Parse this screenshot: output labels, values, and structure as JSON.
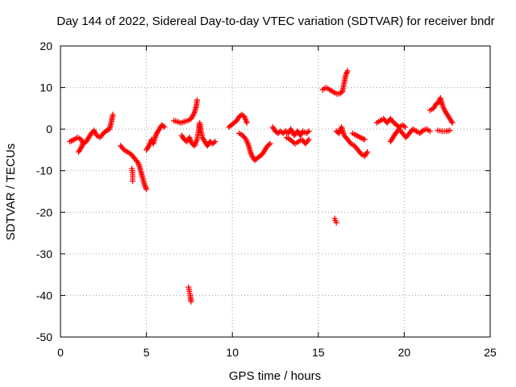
{
  "chart_data": {
    "type": "scatter",
    "title": "Day 144 of 2022, Sidereal Day-to-day VTEC variation (SDTVAR) for receiver bndr",
    "xlabel": "GPS time / hours",
    "ylabel": "SDTVAR / TECUs",
    "xlim": [
      0,
      25
    ],
    "ylim": [
      -50,
      20
    ],
    "xticks": [
      0,
      5,
      10,
      15,
      20,
      25
    ],
    "yticks": [
      -50,
      -40,
      -30,
      -20,
      -10,
      0,
      10,
      20
    ],
    "grid": true,
    "marker": "+",
    "marker_color": "#ff0000",
    "series": [
      {
        "name": "SDTVAR",
        "segments": [
          [
            [
              0.55,
              -3.0
            ],
            [
              0.8,
              -2.5
            ],
            [
              1.0,
              -2.0
            ],
            [
              1.2,
              -2.5
            ],
            [
              1.35,
              -3.5
            ],
            [
              1.5,
              -3.0
            ],
            [
              1.65,
              -2.0
            ],
            [
              1.8,
              -1.0
            ],
            [
              1.95,
              -0.3
            ],
            [
              2.1,
              -1.5
            ],
            [
              2.3,
              -2.0
            ],
            [
              2.5,
              -1.0
            ],
            [
              2.7,
              -0.3
            ],
            [
              2.85,
              0.0
            ],
            [
              2.95,
              1.5
            ],
            [
              3.05,
              3.5
            ]
          ],
          [
            [
              1.05,
              -5.5
            ],
            [
              1.2,
              -4.5
            ],
            [
              1.3,
              -3.5
            ]
          ],
          [
            [
              3.5,
              -4.0
            ],
            [
              3.7,
              -5.0
            ],
            [
              3.9,
              -5.5
            ],
            [
              4.1,
              -6.0
            ],
            [
              4.3,
              -7.0
            ],
            [
              4.5,
              -8.0
            ],
            [
              4.6,
              -9.0
            ],
            [
              4.7,
              -10.5
            ],
            [
              4.8,
              -12.0
            ],
            [
              4.9,
              -13.5
            ],
            [
              5.0,
              -14.5
            ]
          ],
          [
            [
              4.15,
              -9.5
            ],
            [
              4.2,
              -10.5
            ],
            [
              4.2,
              -11.5
            ],
            [
              4.2,
              -12.5
            ]
          ],
          [
            [
              5.0,
              -5.0
            ],
            [
              5.15,
              -4.0
            ],
            [
              5.3,
              -2.5
            ],
            [
              5.4,
              -3.5
            ],
            [
              5.5,
              -2.0
            ],
            [
              5.6,
              -1.0
            ],
            [
              5.75,
              0.0
            ],
            [
              5.9,
              1.0
            ],
            [
              6.05,
              0.5
            ]
          ],
          [
            [
              6.6,
              2.0
            ],
            [
              6.8,
              1.8
            ],
            [
              7.0,
              1.5
            ],
            [
              7.2,
              1.8
            ],
            [
              7.4,
              2.0
            ],
            [
              7.6,
              2.5
            ],
            [
              7.8,
              4.0
            ],
            [
              7.9,
              5.5
            ],
            [
              7.95,
              7.0
            ]
          ],
          [
            [
              7.05,
              -1.5
            ],
            [
              7.2,
              -2.5
            ],
            [
              7.35,
              -3.0
            ],
            [
              7.5,
              -2.0
            ],
            [
              7.65,
              -3.5
            ],
            [
              7.8,
              -4.0
            ],
            [
              7.95,
              -2.5
            ],
            [
              8.05,
              0.0
            ],
            [
              8.1,
              1.5
            ],
            [
              8.25,
              -2.0
            ],
            [
              8.4,
              -3.0
            ],
            [
              8.55,
              -4.0
            ],
            [
              8.7,
              -3.0
            ],
            [
              8.85,
              -3.5
            ],
            [
              9.0,
              -3.0
            ]
          ],
          [
            [
              7.45,
              -38.0
            ],
            [
              7.5,
              -39.0
            ],
            [
              7.55,
              -40.0
            ],
            [
              7.6,
              -41.5
            ]
          ],
          [
            [
              9.8,
              0.5
            ],
            [
              9.95,
              1.0
            ],
            [
              10.1,
              1.5
            ],
            [
              10.25,
              2.0
            ],
            [
              10.4,
              3.0
            ],
            [
              10.55,
              3.5
            ],
            [
              10.7,
              3.0
            ],
            [
              10.85,
              1.5
            ]
          ],
          [
            [
              10.4,
              -1.0
            ],
            [
              10.6,
              -1.5
            ],
            [
              10.8,
              -2.5
            ],
            [
              10.95,
              -4.0
            ],
            [
              11.05,
              -5.5
            ],
            [
              11.15,
              -6.5
            ],
            [
              11.3,
              -7.5
            ],
            [
              11.45,
              -7.0
            ],
            [
              11.6,
              -6.5
            ],
            [
              11.75,
              -6.0
            ],
            [
              11.9,
              -5.0
            ],
            [
              12.05,
              -4.0
            ],
            [
              12.2,
              -3.5
            ]
          ],
          [
            [
              12.35,
              0.5
            ],
            [
              12.5,
              -0.5
            ],
            [
              12.65,
              -1.0
            ],
            [
              12.8,
              -0.5
            ],
            [
              12.95,
              -1.0
            ],
            [
              13.1,
              -0.5
            ],
            [
              13.25,
              -1.0
            ],
            [
              13.4,
              0.0
            ],
            [
              13.6,
              -1.5
            ],
            [
              13.8,
              -0.5
            ],
            [
              13.95,
              -1.5
            ],
            [
              14.1,
              -0.5
            ],
            [
              14.3,
              -1.0
            ],
            [
              14.45,
              -0.5
            ]
          ],
          [
            [
              13.15,
              -2.0
            ],
            [
              13.35,
              -2.5
            ],
            [
              13.5,
              -3.0
            ],
            [
              13.65,
              -3.5
            ],
            [
              13.85,
              -3.0
            ],
            [
              14.05,
              -2.5
            ],
            [
              14.25,
              -3.5
            ],
            [
              14.45,
              -2.5
            ]
          ],
          [
            [
              15.25,
              9.5
            ],
            [
              15.45,
              10.0
            ],
            [
              15.65,
              9.5
            ],
            [
              15.85,
              9.0
            ],
            [
              16.05,
              8.5
            ],
            [
              16.25,
              8.5
            ],
            [
              16.4,
              9.0
            ],
            [
              16.5,
              11.0
            ],
            [
              16.6,
              13.0
            ],
            [
              16.7,
              14.0
            ]
          ],
          [
            [
              15.95,
              -21.5
            ],
            [
              16.0,
              -22.0
            ],
            [
              16.05,
              -22.5
            ]
          ],
          [
            [
              16.05,
              -0.5
            ],
            [
              16.2,
              -1.0
            ],
            [
              16.35,
              0.5
            ],
            [
              16.5,
              -1.5
            ],
            [
              16.7,
              -2.5
            ],
            [
              16.9,
              -3.5
            ],
            [
              17.1,
              -4.0
            ],
            [
              17.3,
              -5.0
            ],
            [
              17.5,
              -6.0
            ],
            [
              17.7,
              -6.5
            ],
            [
              17.85,
              -5.5
            ]
          ],
          [
            [
              17.0,
              -1.0
            ],
            [
              17.2,
              -1.5
            ],
            [
              17.45,
              -2.0
            ],
            [
              17.7,
              -2.5
            ]
          ],
          [
            [
              18.4,
              1.5
            ],
            [
              18.6,
              2.0
            ],
            [
              18.8,
              2.5
            ],
            [
              19.0,
              1.5
            ],
            [
              19.2,
              2.5
            ],
            [
              19.4,
              1.5
            ],
            [
              19.55,
              1.0
            ],
            [
              19.7,
              0.5
            ]
          ],
          [
            [
              19.2,
              -3.0
            ],
            [
              19.35,
              -2.0
            ],
            [
              19.5,
              -1.0
            ],
            [
              19.7,
              0.0
            ],
            [
              19.9,
              -1.0
            ],
            [
              20.1,
              -2.0
            ],
            [
              20.3,
              -1.0
            ],
            [
              20.5,
              0.0
            ],
            [
              20.7,
              -0.5
            ],
            [
              20.9,
              -1.0
            ],
            [
              21.1,
              -0.3
            ],
            [
              21.3,
              0.0
            ],
            [
              21.5,
              -0.5
            ]
          ],
          [
            [
              19.7,
              0.5
            ],
            [
              19.9,
              1.0
            ],
            [
              20.05,
              0.5
            ]
          ],
          [
            [
              21.5,
              4.5
            ],
            [
              21.7,
              5.0
            ],
            [
              21.85,
              6.0
            ],
            [
              22.0,
              6.5
            ],
            [
              22.1,
              7.5
            ],
            [
              22.2,
              6.0
            ],
            [
              22.35,
              4.5
            ],
            [
              22.5,
              3.5
            ],
            [
              22.65,
              2.5
            ],
            [
              22.8,
              1.5
            ]
          ],
          [
            [
              21.95,
              -0.3
            ],
            [
              22.2,
              -0.5
            ],
            [
              22.45,
              -0.5
            ],
            [
              22.65,
              -0.3
            ]
          ]
        ]
      }
    ]
  }
}
